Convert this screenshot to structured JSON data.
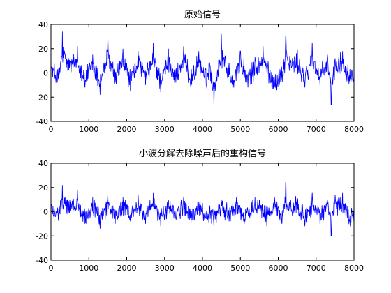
{
  "chart_data": [
    {
      "type": "line",
      "title": "原始信号",
      "xlabel": "",
      "ylabel": "",
      "xlim": [
        0,
        8000
      ],
      "ylim": [
        -40,
        40
      ],
      "xticks": [
        "0",
        "1000",
        "2000",
        "3000",
        "4000",
        "5000",
        "6000",
        "7000",
        "8000"
      ],
      "yticks": [
        "40",
        "20",
        "0",
        "-20",
        "-40"
      ],
      "grid": false,
      "line_color": "#0000ff",
      "series": [
        {
          "x": [
            0,
            200,
            300,
            500,
            700,
            900,
            1100,
            1300,
            1500,
            1700,
            1900,
            2100,
            2300,
            2500,
            2700,
            2900,
            3100,
            3300,
            3500,
            3700,
            3900,
            4100,
            4200,
            4300,
            4500,
            4600,
            4800,
            5000,
            5200,
            5400,
            5600,
            5800,
            5950,
            6100,
            6200,
            6300,
            6500,
            6700,
            6900,
            7100,
            7300,
            7400,
            7500,
            7700,
            7900,
            8000
          ],
          "values": [
            6,
            -10,
            34,
            10,
            22,
            -12,
            15,
            -18,
            30,
            -8,
            20,
            -15,
            18,
            -10,
            25,
            -16,
            20,
            -8,
            22,
            -12,
            18,
            -10,
            6,
            -28,
            32,
            14,
            -14,
            18,
            -12,
            10,
            22,
            -8,
            -16,
            -3,
            30,
            14,
            20,
            -12,
            25,
            -10,
            15,
            -26,
            12,
            18,
            -5,
            0
          ]
        }
      ]
    },
    {
      "type": "line",
      "title": "小波分解去除噪声后的重构信号",
      "xlabel": "",
      "ylabel": "",
      "xlim": [
        0,
        8000
      ],
      "ylim": [
        -40,
        40
      ],
      "xticks": [
        "0",
        "1000",
        "2000",
        "3000",
        "4000",
        "5000",
        "6000",
        "7000",
        "8000"
      ],
      "yticks": [
        "40",
        "20",
        "0",
        "-20",
        "-40"
      ],
      "grid": false,
      "line_color": "#0000ff",
      "series": [
        {
          "x": [
            0,
            200,
            300,
            500,
            700,
            900,
            1100,
            1300,
            1500,
            1700,
            1900,
            2100,
            2300,
            2500,
            2700,
            2900,
            3100,
            3300,
            3500,
            3700,
            3900,
            4100,
            4300,
            4500,
            4700,
            4900,
            5100,
            5300,
            5500,
            5700,
            5900,
            6100,
            6200,
            6300,
            6500,
            6700,
            6900,
            7100,
            7300,
            7400,
            7500,
            7700,
            7900,
            8000
          ],
          "values": [
            5,
            -8,
            22,
            10,
            18,
            -10,
            12,
            -14,
            15,
            -10,
            12,
            -8,
            14,
            -10,
            16,
            -12,
            10,
            -6,
            12,
            -10,
            8,
            -6,
            -12,
            10,
            -8,
            12,
            -10,
            8,
            10,
            -12,
            12,
            -10,
            24,
            8,
            12,
            -12,
            16,
            -10,
            10,
            -20,
            14,
            16,
            -12,
            -2
          ]
        }
      ]
    }
  ]
}
